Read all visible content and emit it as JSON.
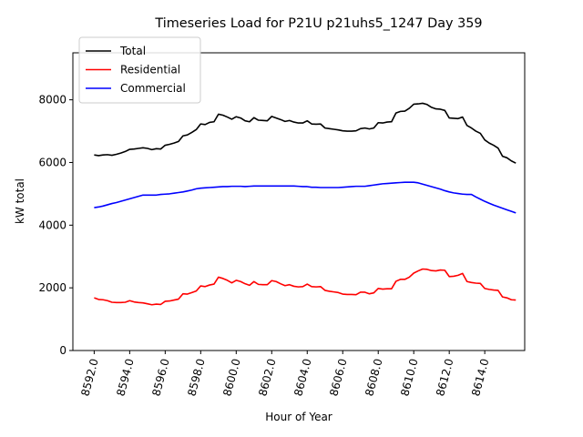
{
  "chart_data": {
    "type": "line",
    "title": "Timeseries Load for P21U p21uhs5_1247  Day 359",
    "xlabel": "Hour of Year",
    "ylabel": "kW total",
    "xlim": [
      8590.8,
      8616.25
    ],
    "ylim": [
      0,
      9500
    ],
    "xticks": [
      8592,
      8594,
      8596,
      8598,
      8600,
      8602,
      8604,
      8606,
      8608,
      8610,
      8612,
      8614
    ],
    "xtick_labels": [
      "8592.0",
      "8594.0",
      "8596.0",
      "8598.0",
      "8600.0",
      "8602.0",
      "8604.0",
      "8606.0",
      "8608.0",
      "8610.0",
      "8612.0",
      "8614.0"
    ],
    "yticks": [
      0,
      2000,
      4000,
      6000,
      8000
    ],
    "ytick_labels": [
      "0",
      "2000",
      "4000",
      "6000",
      "8000"
    ],
    "legend_position": "upper-left",
    "grid": false,
    "x": [
      8592.0,
      8592.25,
      8592.5,
      8592.75,
      8593.0,
      8593.25,
      8593.5,
      8593.75,
      8594.0,
      8594.25,
      8594.5,
      8594.75,
      8595.0,
      8595.25,
      8595.5,
      8595.75,
      8596.0,
      8596.25,
      8596.5,
      8596.75,
      8597.0,
      8597.25,
      8597.5,
      8597.75,
      8598.0,
      8598.25,
      8598.5,
      8598.75,
      8599.0,
      8599.25,
      8599.5,
      8599.75,
      8600.0,
      8600.25,
      8600.5,
      8600.75,
      8601.0,
      8601.25,
      8601.5,
      8601.75,
      8602.0,
      8602.25,
      8602.5,
      8602.75,
      8603.0,
      8603.25,
      8603.5,
      8603.75,
      8604.0,
      8604.25,
      8604.5,
      8604.75,
      8605.0,
      8605.25,
      8605.5,
      8605.75,
      8606.0,
      8606.25,
      8606.5,
      8606.75,
      8607.0,
      8607.25,
      8607.5,
      8607.75,
      8608.0,
      8608.25,
      8608.5,
      8608.75,
      8609.0,
      8609.25,
      8609.5,
      8609.75,
      8610.0,
      8610.25,
      8610.5,
      8610.75,
      8611.0,
      8611.25,
      8611.5,
      8611.75,
      8612.0,
      8612.25,
      8612.5,
      8612.75,
      8613.0,
      8613.25,
      8613.5,
      8613.75,
      8614.0,
      8614.25,
      8614.5,
      8614.75,
      8615.0,
      8615.25,
      8615.5,
      8615.75
    ],
    "series": [
      {
        "name": "Total",
        "color": "#000000",
        "values": [
          6240,
          6220,
          6240,
          6250,
          6230,
          6260,
          6300,
          6350,
          6420,
          6430,
          6450,
          6470,
          6450,
          6410,
          6440,
          6430,
          6550,
          6580,
          6620,
          6670,
          6850,
          6880,
          6960,
          7050,
          7230,
          7210,
          7280,
          7300,
          7540,
          7510,
          7450,
          7380,
          7460,
          7420,
          7330,
          7300,
          7430,
          7350,
          7340,
          7330,
          7470,
          7420,
          7370,
          7310,
          7340,
          7290,
          7260,
          7260,
          7330,
          7230,
          7220,
          7230,
          7100,
          7080,
          7060,
          7040,
          7010,
          7000,
          7000,
          7010,
          7080,
          7100,
          7070,
          7100,
          7270,
          7260,
          7290,
          7300,
          7580,
          7630,
          7640,
          7730,
          7860,
          7870,
          7890,
          7850,
          7760,
          7710,
          7700,
          7660,
          7420,
          7410,
          7400,
          7450,
          7180,
          7100,
          7000,
          6930,
          6720,
          6620,
          6550,
          6460,
          6200,
          6150,
          6050,
          5980
        ]
      },
      {
        "name": "Residential",
        "color": "#ff0000",
        "values": [
          1680,
          1630,
          1620,
          1590,
          1540,
          1530,
          1530,
          1540,
          1590,
          1550,
          1530,
          1520,
          1490,
          1460,
          1480,
          1470,
          1570,
          1580,
          1610,
          1640,
          1810,
          1800,
          1850,
          1900,
          2060,
          2040,
          2090,
          2120,
          2340,
          2300,
          2240,
          2160,
          2240,
          2200,
          2130,
          2080,
          2200,
          2110,
          2100,
          2100,
          2230,
          2200,
          2130,
          2070,
          2100,
          2050,
          2030,
          2040,
          2120,
          2040,
          2030,
          2040,
          1920,
          1890,
          1870,
          1850,
          1800,
          1790,
          1790,
          1780,
          1860,
          1860,
          1810,
          1840,
          1980,
          1960,
          1970,
          1970,
          2210,
          2270,
          2270,
          2340,
          2470,
          2540,
          2600,
          2590,
          2550,
          2540,
          2570,
          2560,
          2360,
          2370,
          2400,
          2460,
          2200,
          2170,
          2150,
          2140,
          1980,
          1950,
          1930,
          1920,
          1710,
          1680,
          1620,
          1610
        ]
      },
      {
        "name": "Commercial",
        "color": "#0000ff",
        "values": [
          4560,
          4580,
          4610,
          4650,
          4690,
          4720,
          4760,
          4800,
          4840,
          4880,
          4920,
          4960,
          4960,
          4960,
          4960,
          4980,
          4990,
          5000,
          5020,
          5040,
          5060,
          5090,
          5120,
          5160,
          5180,
          5190,
          5200,
          5210,
          5220,
          5230,
          5230,
          5240,
          5240,
          5240,
          5230,
          5240,
          5250,
          5250,
          5250,
          5250,
          5250,
          5250,
          5250,
          5250,
          5250,
          5250,
          5240,
          5230,
          5230,
          5210,
          5210,
          5200,
          5200,
          5200,
          5200,
          5200,
          5210,
          5220,
          5230,
          5240,
          5240,
          5240,
          5260,
          5280,
          5300,
          5320,
          5330,
          5340,
          5350,
          5360,
          5370,
          5370,
          5370,
          5350,
          5310,
          5270,
          5230,
          5190,
          5150,
          5100,
          5060,
          5030,
          5010,
          4990,
          4980,
          4980,
          4900,
          4830,
          4760,
          4700,
          4640,
          4590,
          4540,
          4490,
          4440,
          4390
        ]
      }
    ]
  }
}
